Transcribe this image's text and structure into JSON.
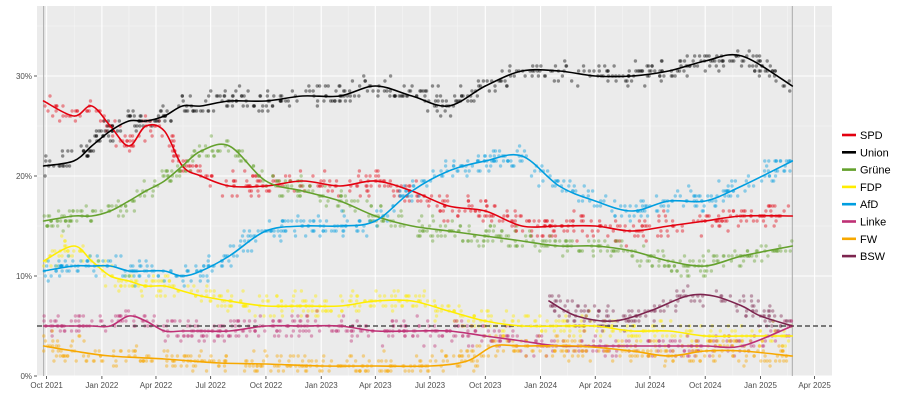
{
  "chart_data": {
    "type": "line",
    "title": "",
    "xlabel": "",
    "ylabel": "",
    "x_range": [
      "2021-09-15",
      "2025-04-30"
    ],
    "ylim": [
      0,
      37
    ],
    "y_ticks": [
      {
        "value": 0,
        "label": "0%"
      },
      {
        "value": 10,
        "label": "10%"
      },
      {
        "value": 20,
        "label": "20%"
      },
      {
        "value": 30,
        "label": "30%"
      }
    ],
    "x_ticks": [
      {
        "date": "2021-10-01",
        "label": "Oct 2021"
      },
      {
        "date": "2022-01-01",
        "label": "Jan 2022"
      },
      {
        "date": "2022-04-01",
        "label": "Apr 2022"
      },
      {
        "date": "2022-07-01",
        "label": "Jul 2022"
      },
      {
        "date": "2022-10-01",
        "label": "Oct 2022"
      },
      {
        "date": "2023-01-01",
        "label": "Jan 2023"
      },
      {
        "date": "2023-04-01",
        "label": "Apr 2023"
      },
      {
        "date": "2023-07-01",
        "label": "Jul 2023"
      },
      {
        "date": "2023-10-01",
        "label": "Oct 2023"
      },
      {
        "date": "2024-01-01",
        "label": "Jan 2024"
      },
      {
        "date": "2024-04-01",
        "label": "Apr 2024"
      },
      {
        "date": "2024-07-01",
        "label": "Jul 2024"
      },
      {
        "date": "2024-10-01",
        "label": "Oct 2024"
      },
      {
        "date": "2025-01-01",
        "label": "Jan 2025"
      },
      {
        "date": "2025-04-01",
        "label": "Apr 2025"
      }
    ],
    "vertical_lines": [
      "2021-09-26",
      "2025-02-23"
    ],
    "reference_line": {
      "value": 5,
      "style": "dashed",
      "color": "#333333"
    },
    "grid": true,
    "legend_position": "right",
    "series": [
      {
        "name": "SPD",
        "color": "#E3000F",
        "points": [
          [
            "2021-09-26",
            27.5
          ],
          [
            "2021-11-15",
            26.0
          ],
          [
            "2021-12-15",
            27.0
          ],
          [
            "2022-01-15",
            25.0
          ],
          [
            "2022-02-15",
            23.0
          ],
          [
            "2022-03-15",
            25.0
          ],
          [
            "2022-04-15",
            24.5
          ],
          [
            "2022-05-15",
            21.0
          ],
          [
            "2022-06-15",
            20.0
          ],
          [
            "2022-08-01",
            19.0
          ],
          [
            "2022-10-01",
            19.0
          ],
          [
            "2022-12-01",
            19.5
          ],
          [
            "2023-02-01",
            19.0
          ],
          [
            "2023-04-01",
            19.5
          ],
          [
            "2023-06-01",
            18.5
          ],
          [
            "2023-08-01",
            17.0
          ],
          [
            "2023-10-01",
            16.5
          ],
          [
            "2023-12-01",
            15.0
          ],
          [
            "2024-02-01",
            15.0
          ],
          [
            "2024-04-01",
            15.0
          ],
          [
            "2024-06-01",
            14.5
          ],
          [
            "2024-08-01",
            15.0
          ],
          [
            "2024-10-01",
            15.5
          ],
          [
            "2024-12-01",
            16.0
          ],
          [
            "2025-02-23",
            16.0
          ]
        ]
      },
      {
        "name": "Union",
        "color": "#000000",
        "points": [
          [
            "2021-09-26",
            21.0
          ],
          [
            "2021-11-15",
            21.5
          ],
          [
            "2021-12-15",
            23.0
          ],
          [
            "2022-01-15",
            24.5
          ],
          [
            "2022-02-15",
            25.5
          ],
          [
            "2022-03-15",
            25.5
          ],
          [
            "2022-04-15",
            26.0
          ],
          [
            "2022-05-15",
            27.0
          ],
          [
            "2022-06-15",
            27.0
          ],
          [
            "2022-08-01",
            27.5
          ],
          [
            "2022-10-01",
            27.5
          ],
          [
            "2022-12-01",
            28.0
          ],
          [
            "2023-02-01",
            28.0
          ],
          [
            "2023-04-01",
            29.0
          ],
          [
            "2023-06-01",
            28.0
          ],
          [
            "2023-08-01",
            27.0
          ],
          [
            "2023-10-01",
            29.0
          ],
          [
            "2023-12-01",
            30.5
          ],
          [
            "2024-02-01",
            30.5
          ],
          [
            "2024-04-01",
            30.0
          ],
          [
            "2024-06-01",
            30.0
          ],
          [
            "2024-08-01",
            30.5
          ],
          [
            "2024-10-01",
            31.5
          ],
          [
            "2024-12-01",
            32.0
          ],
          [
            "2025-02-23",
            29.0
          ]
        ]
      },
      {
        "name": "Grüne",
        "color": "#64A12D",
        "points": [
          [
            "2021-09-26",
            15.5
          ],
          [
            "2021-11-15",
            16.0
          ],
          [
            "2021-12-15",
            16.0
          ],
          [
            "2022-01-15",
            16.5
          ],
          [
            "2022-02-15",
            17.5
          ],
          [
            "2022-03-15",
            18.5
          ],
          [
            "2022-04-15",
            19.5
          ],
          [
            "2022-05-15",
            21.0
          ],
          [
            "2022-06-15",
            22.5
          ],
          [
            "2022-08-01",
            23.0
          ],
          [
            "2022-10-01",
            19.5
          ],
          [
            "2022-12-01",
            18.5
          ],
          [
            "2023-02-01",
            17.5
          ],
          [
            "2023-04-01",
            16.0
          ],
          [
            "2023-06-01",
            15.0
          ],
          [
            "2023-08-01",
            14.5
          ],
          [
            "2023-10-01",
            14.0
          ],
          [
            "2023-12-01",
            13.5
          ],
          [
            "2024-02-01",
            13.0
          ],
          [
            "2024-04-01",
            13.0
          ],
          [
            "2024-06-01",
            12.5
          ],
          [
            "2024-08-01",
            11.5
          ],
          [
            "2024-10-01",
            11.0
          ],
          [
            "2024-12-01",
            12.0
          ],
          [
            "2025-02-23",
            13.0
          ]
        ]
      },
      {
        "name": "FDP",
        "color": "#FFED00",
        "points": [
          [
            "2021-09-26",
            11.5
          ],
          [
            "2021-11-15",
            13.0
          ],
          [
            "2021-12-15",
            11.5
          ],
          [
            "2022-01-15",
            10.0
          ],
          [
            "2022-02-15",
            9.5
          ],
          [
            "2022-03-15",
            9.0
          ],
          [
            "2022-04-15",
            9.0
          ],
          [
            "2022-05-15",
            8.5
          ],
          [
            "2022-06-15",
            8.0
          ],
          [
            "2022-08-01",
            7.5
          ],
          [
            "2022-10-01",
            7.0
          ],
          [
            "2022-12-01",
            7.0
          ],
          [
            "2023-02-01",
            7.0
          ],
          [
            "2023-04-01",
            7.5
          ],
          [
            "2023-06-01",
            7.5
          ],
          [
            "2023-08-01",
            6.5
          ],
          [
            "2023-10-01",
            5.5
          ],
          [
            "2023-12-01",
            5.0
          ],
          [
            "2024-02-01",
            5.0
          ],
          [
            "2024-04-01",
            5.0
          ],
          [
            "2024-06-01",
            4.5
          ],
          [
            "2024-08-01",
            4.5
          ],
          [
            "2024-10-01",
            4.0
          ],
          [
            "2024-12-01",
            4.0
          ],
          [
            "2025-02-23",
            4.0
          ]
        ]
      },
      {
        "name": "AfD",
        "color": "#009EE0",
        "points": [
          [
            "2021-09-26",
            10.5
          ],
          [
            "2021-11-15",
            11.0
          ],
          [
            "2021-12-15",
            11.0
          ],
          [
            "2022-01-15",
            11.0
          ],
          [
            "2022-02-15",
            10.5
          ],
          [
            "2022-03-15",
            10.5
          ],
          [
            "2022-04-15",
            10.5
          ],
          [
            "2022-05-15",
            10.0
          ],
          [
            "2022-06-15",
            10.5
          ],
          [
            "2022-08-01",
            12.0
          ],
          [
            "2022-10-01",
            14.5
          ],
          [
            "2022-12-01",
            15.0
          ],
          [
            "2023-02-01",
            15.0
          ],
          [
            "2023-04-01",
            15.5
          ],
          [
            "2023-06-01",
            18.5
          ],
          [
            "2023-08-01",
            20.5
          ],
          [
            "2023-10-01",
            21.5
          ],
          [
            "2023-12-01",
            22.0
          ],
          [
            "2024-02-01",
            19.0
          ],
          [
            "2024-04-01",
            17.5
          ],
          [
            "2024-06-01",
            16.5
          ],
          [
            "2024-08-01",
            17.5
          ],
          [
            "2024-10-01",
            17.5
          ],
          [
            "2024-12-01",
            19.0
          ],
          [
            "2025-02-23",
            21.5
          ]
        ]
      },
      {
        "name": "Linke",
        "color": "#BE3075",
        "points": [
          [
            "2021-09-26",
            5.0
          ],
          [
            "2021-11-15",
            5.0
          ],
          [
            "2021-12-15",
            5.0
          ],
          [
            "2022-01-15",
            5.0
          ],
          [
            "2022-02-15",
            6.0
          ],
          [
            "2022-03-15",
            5.5
          ],
          [
            "2022-04-15",
            4.5
          ],
          [
            "2022-05-15",
            4.5
          ],
          [
            "2022-06-15",
            4.5
          ],
          [
            "2022-08-01",
            4.5
          ],
          [
            "2022-10-01",
            5.0
          ],
          [
            "2022-12-01",
            5.0
          ],
          [
            "2023-02-01",
            5.0
          ],
          [
            "2023-04-01",
            4.5
          ],
          [
            "2023-06-01",
            4.5
          ],
          [
            "2023-08-01",
            4.5
          ],
          [
            "2023-10-01",
            4.0
          ],
          [
            "2023-12-01",
            3.5
          ],
          [
            "2024-02-01",
            3.0
          ],
          [
            "2024-04-01",
            3.0
          ],
          [
            "2024-06-01",
            3.0
          ],
          [
            "2024-08-01",
            3.0
          ],
          [
            "2024-10-01",
            3.0
          ],
          [
            "2024-12-01",
            3.0
          ],
          [
            "2025-02-23",
            5.0
          ]
        ]
      },
      {
        "name": "FW",
        "color": "#F7A800",
        "points": [
          [
            "2021-09-26",
            3.0
          ],
          [
            "2021-11-15",
            2.5
          ],
          [
            "2022-01-15",
            2.0
          ],
          [
            "2022-04-15",
            1.7
          ],
          [
            "2022-07-15",
            1.3
          ],
          [
            "2022-10-01",
            1.2
          ],
          [
            "2023-01-01",
            1.0
          ],
          [
            "2023-04-01",
            1.0
          ],
          [
            "2023-07-01",
            1.0
          ],
          [
            "2023-09-01",
            1.5
          ],
          [
            "2023-10-15",
            3.0
          ],
          [
            "2023-12-01",
            3.0
          ],
          [
            "2024-03-01",
            3.0
          ],
          [
            "2024-06-01",
            2.5
          ],
          [
            "2024-08-01",
            2.0
          ],
          [
            "2024-10-01",
            2.5
          ],
          [
            "2024-12-01",
            2.5
          ],
          [
            "2025-02-23",
            2.0
          ]
        ]
      },
      {
        "name": "BSW",
        "color": "#7D254F",
        "points": [
          [
            "2024-01-15",
            7.5
          ],
          [
            "2024-03-01",
            6.0
          ],
          [
            "2024-05-01",
            5.5
          ],
          [
            "2024-07-01",
            6.5
          ],
          [
            "2024-09-01",
            8.0
          ],
          [
            "2024-10-15",
            8.0
          ],
          [
            "2024-12-01",
            7.0
          ],
          [
            "2025-01-01",
            6.0
          ],
          [
            "2025-02-23",
            5.0
          ]
        ]
      }
    ]
  }
}
